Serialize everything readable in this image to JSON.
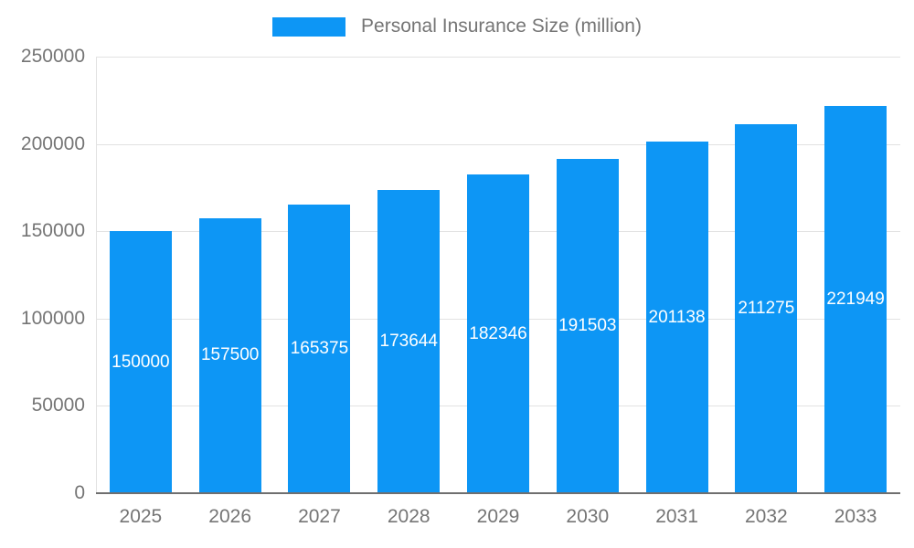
{
  "legend": {
    "label": "Personal Insurance Size (million)"
  },
  "colors": {
    "bar": "#0d96f5",
    "axis_text": "#757575",
    "gridline": "#e2e2e2",
    "baseline": "#6f6f6f",
    "bar_label": "#ffffff"
  },
  "chart_data": {
    "type": "bar",
    "title": "Personal Insurance Size (million)",
    "categories": [
      "2025",
      "2026",
      "2027",
      "2028",
      "2029",
      "2030",
      "2031",
      "2032",
      "2033"
    ],
    "values": [
      150000,
      157500,
      165375,
      173644,
      182346,
      191503,
      201138,
      211275,
      221949
    ],
    "value_labels": [
      "150000",
      "157500",
      "165375",
      "173644",
      "182346",
      "191503",
      "201138",
      "211275",
      "221949"
    ],
    "xlabel": "",
    "ylabel": "",
    "ylim": [
      0,
      250000
    ],
    "yticks": [
      0,
      50000,
      100000,
      150000,
      200000,
      250000
    ],
    "ytick_labels": [
      "0",
      "50000",
      "100000",
      "150000",
      "200000",
      "250000"
    ],
    "grid": true,
    "legend_position": "top-center",
    "bar_labels_position": "inside-middle"
  }
}
